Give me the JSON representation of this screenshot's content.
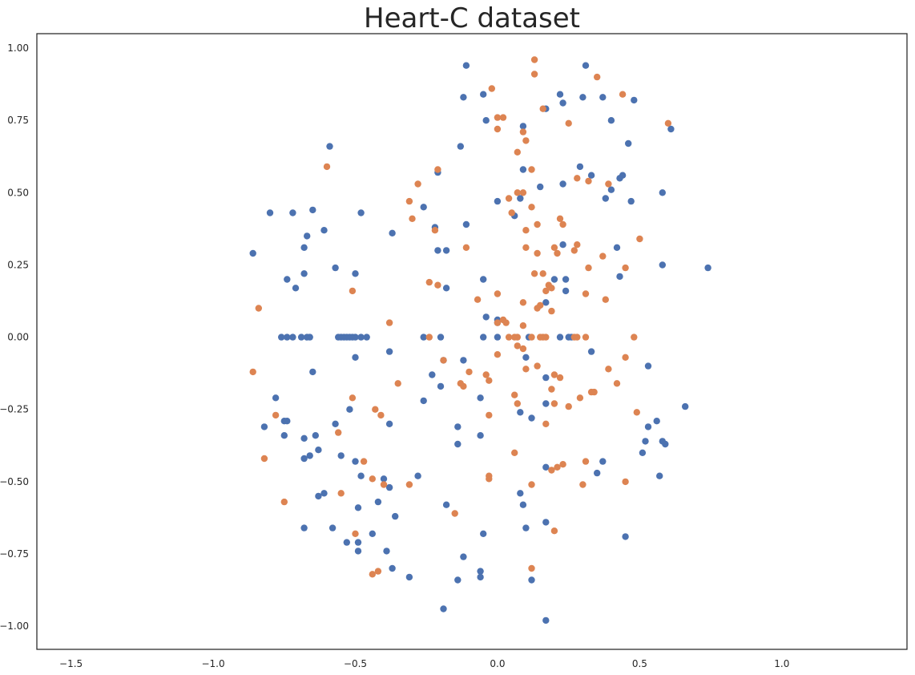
{
  "chart_data": {
    "type": "scatter",
    "title": "Heart-C dataset",
    "xlabel": "",
    "ylabel": "",
    "xlim": [
      -1.62,
      1.44
    ],
    "ylim": [
      -1.08,
      1.05
    ],
    "xticks": [
      -1.5,
      -1.0,
      -0.5,
      0.0,
      0.5,
      1.0
    ],
    "xtick_labels": [
      "−1.5",
      "−1.0",
      "−0.5",
      "0.0",
      "0.5",
      "1.0"
    ],
    "yticks": [
      -1.0,
      -0.75,
      -0.5,
      -0.25,
      0.0,
      0.25,
      0.5,
      0.75,
      1.0
    ],
    "ytick_labels": [
      "−1.00",
      "−0.75",
      "−0.50",
      "−0.25",
      "0.00",
      "0.25",
      "0.50",
      "0.75",
      "1.00"
    ],
    "grid": false,
    "legend": "none",
    "series": [
      {
        "color": "#4c72b0",
        "points": [
          [
            -0.11,
            0.94
          ],
          [
            0.31,
            0.94
          ],
          [
            -0.12,
            0.83
          ],
          [
            -0.05,
            0.84
          ],
          [
            0.22,
            0.84
          ],
          [
            0.3,
            0.83
          ],
          [
            0.37,
            0.83
          ],
          [
            0.48,
            0.82
          ],
          [
            0.17,
            0.79
          ],
          [
            0.23,
            0.81
          ],
          [
            -0.04,
            0.75
          ],
          [
            0.09,
            0.73
          ],
          [
            0.4,
            0.75
          ],
          [
            0.61,
            0.72
          ],
          [
            0.46,
            0.67
          ],
          [
            -0.13,
            0.66
          ],
          [
            -0.59,
            0.66
          ],
          [
            0.29,
            0.59
          ],
          [
            0.09,
            0.58
          ],
          [
            0.33,
            0.56
          ],
          [
            -0.21,
            0.57
          ],
          [
            0.44,
            0.56
          ],
          [
            0.43,
            0.55
          ],
          [
            0.23,
            0.53
          ],
          [
            -0.26,
            0.45
          ],
          [
            0.15,
            0.52
          ],
          [
            0.4,
            0.51
          ],
          [
            0.58,
            0.5
          ],
          [
            0.08,
            0.48
          ],
          [
            0.38,
            0.48
          ],
          [
            0.47,
            0.47
          ],
          [
            0.0,
            0.47
          ],
          [
            -0.48,
            0.43
          ],
          [
            -0.8,
            0.43
          ],
          [
            -0.72,
            0.43
          ],
          [
            -0.65,
            0.44
          ],
          [
            0.06,
            0.42
          ],
          [
            -0.61,
            0.37
          ],
          [
            -0.37,
            0.36
          ],
          [
            -0.67,
            0.35
          ],
          [
            -0.22,
            0.38
          ],
          [
            -0.11,
            0.39
          ],
          [
            -0.21,
            0.3
          ],
          [
            -0.18,
            0.3
          ],
          [
            0.23,
            0.32
          ],
          [
            0.42,
            0.31
          ],
          [
            -0.68,
            0.31
          ],
          [
            -0.86,
            0.29
          ],
          [
            -0.57,
            0.24
          ],
          [
            -0.5,
            0.22
          ],
          [
            0.58,
            0.25
          ],
          [
            0.74,
            0.24
          ],
          [
            -0.68,
            0.22
          ],
          [
            0.43,
            0.21
          ],
          [
            -0.74,
            0.2
          ],
          [
            0.2,
            0.2
          ],
          [
            0.24,
            0.2
          ],
          [
            -0.05,
            0.2
          ],
          [
            -0.18,
            0.17
          ],
          [
            -0.71,
            0.17
          ],
          [
            0.24,
            0.16
          ],
          [
            0.17,
            0.12
          ],
          [
            -0.04,
            0.07
          ],
          [
            0.0,
            0.06
          ],
          [
            0.0,
            0.05
          ],
          [
            -0.76,
            0.0
          ],
          [
            -0.74,
            0.0
          ],
          [
            -0.72,
            0.0
          ],
          [
            -0.69,
            0.0
          ],
          [
            -0.67,
            0.0
          ],
          [
            -0.66,
            0.0
          ],
          [
            -0.56,
            0.0
          ],
          [
            -0.55,
            0.0
          ],
          [
            -0.54,
            0.0
          ],
          [
            -0.53,
            0.0
          ],
          [
            -0.52,
            0.0
          ],
          [
            -0.51,
            0.0
          ],
          [
            -0.5,
            0.0
          ],
          [
            -0.48,
            0.0
          ],
          [
            -0.46,
            0.0
          ],
          [
            -0.26,
            0.0
          ],
          [
            -0.2,
            0.0
          ],
          [
            -0.05,
            0.0
          ],
          [
            0.0,
            0.0
          ],
          [
            0.11,
            0.0
          ],
          [
            0.22,
            0.0
          ],
          [
            0.25,
            0.0
          ],
          [
            0.26,
            0.0
          ],
          [
            -0.38,
            -0.05
          ],
          [
            -0.5,
            -0.07
          ],
          [
            0.1,
            -0.07
          ],
          [
            0.33,
            -0.05
          ],
          [
            -0.19,
            -0.08
          ],
          [
            -0.12,
            -0.08
          ],
          [
            -0.65,
            -0.12
          ],
          [
            0.53,
            -0.1
          ],
          [
            -0.23,
            -0.13
          ],
          [
            -0.2,
            -0.17
          ],
          [
            0.17,
            -0.14
          ],
          [
            -0.78,
            -0.21
          ],
          [
            -0.26,
            -0.22
          ],
          [
            -0.06,
            -0.21
          ],
          [
            0.66,
            -0.24
          ],
          [
            -0.74,
            -0.29
          ],
          [
            -0.75,
            -0.29
          ],
          [
            -0.38,
            -0.3
          ],
          [
            -0.82,
            -0.31
          ],
          [
            -0.52,
            -0.25
          ],
          [
            0.08,
            -0.26
          ],
          [
            0.12,
            -0.28
          ],
          [
            0.17,
            -0.23
          ],
          [
            -0.57,
            -0.3
          ],
          [
            -0.14,
            -0.31
          ],
          [
            0.53,
            -0.31
          ],
          [
            0.56,
            -0.29
          ],
          [
            -0.75,
            -0.34
          ],
          [
            -0.68,
            -0.35
          ],
          [
            -0.64,
            -0.34
          ],
          [
            -0.06,
            -0.34
          ],
          [
            0.52,
            -0.36
          ],
          [
            0.58,
            -0.36
          ],
          [
            0.59,
            -0.37
          ],
          [
            -0.14,
            -0.37
          ],
          [
            -0.63,
            -0.39
          ],
          [
            0.51,
            -0.4
          ],
          [
            -0.66,
            -0.41
          ],
          [
            -0.68,
            -0.42
          ],
          [
            -0.55,
            -0.41
          ],
          [
            -0.5,
            -0.43
          ],
          [
            0.37,
            -0.43
          ],
          [
            0.17,
            -0.45
          ],
          [
            0.35,
            -0.47
          ],
          [
            -0.28,
            -0.48
          ],
          [
            -0.48,
            -0.48
          ],
          [
            -0.4,
            -0.49
          ],
          [
            -0.38,
            -0.52
          ],
          [
            0.57,
            -0.48
          ],
          [
            0.08,
            -0.54
          ],
          [
            -0.61,
            -0.54
          ],
          [
            -0.63,
            -0.55
          ],
          [
            -0.42,
            -0.57
          ],
          [
            -0.18,
            -0.58
          ],
          [
            0.09,
            -0.58
          ],
          [
            -0.49,
            -0.59
          ],
          [
            -0.36,
            -0.62
          ],
          [
            0.17,
            -0.64
          ],
          [
            -0.68,
            -0.66
          ],
          [
            -0.58,
            -0.66
          ],
          [
            0.1,
            -0.66
          ],
          [
            -0.05,
            -0.68
          ],
          [
            0.45,
            -0.69
          ],
          [
            -0.44,
            -0.68
          ],
          [
            -0.53,
            -0.71
          ],
          [
            -0.49,
            -0.71
          ],
          [
            -0.49,
            -0.74
          ],
          [
            -0.39,
            -0.74
          ],
          [
            -0.12,
            -0.76
          ],
          [
            -0.37,
            -0.8
          ],
          [
            -0.31,
            -0.83
          ],
          [
            -0.14,
            -0.84
          ],
          [
            -0.06,
            -0.81
          ],
          [
            -0.06,
            -0.83
          ],
          [
            0.12,
            -0.84
          ],
          [
            -0.19,
            -0.94
          ],
          [
            0.17,
            -0.98
          ]
        ]
      },
      {
        "color": "#dd8452",
        "points": [
          [
            0.13,
            0.96
          ],
          [
            0.13,
            0.91
          ],
          [
            0.35,
            0.9
          ],
          [
            -0.02,
            0.86
          ],
          [
            0.44,
            0.84
          ],
          [
            0.16,
            0.79
          ],
          [
            0.0,
            0.76
          ],
          [
            0.02,
            0.76
          ],
          [
            0.25,
            0.74
          ],
          [
            0.6,
            0.74
          ],
          [
            0.0,
            0.72
          ],
          [
            0.09,
            0.71
          ],
          [
            0.1,
            0.68
          ],
          [
            0.07,
            0.64
          ],
          [
            -0.6,
            0.59
          ],
          [
            0.12,
            0.58
          ],
          [
            -0.21,
            0.58
          ],
          [
            -0.28,
            0.53
          ],
          [
            0.28,
            0.55
          ],
          [
            0.32,
            0.54
          ],
          [
            0.39,
            0.53
          ],
          [
            0.07,
            0.5
          ],
          [
            0.09,
            0.5
          ],
          [
            0.04,
            0.48
          ],
          [
            -0.31,
            0.47
          ],
          [
            0.12,
            0.45
          ],
          [
            0.05,
            0.43
          ],
          [
            0.22,
            0.41
          ],
          [
            0.23,
            0.39
          ],
          [
            -0.3,
            0.41
          ],
          [
            0.14,
            0.39
          ],
          [
            0.1,
            0.37
          ],
          [
            -0.22,
            0.37
          ],
          [
            0.5,
            0.34
          ],
          [
            0.28,
            0.32
          ],
          [
            0.2,
            0.31
          ],
          [
            -0.11,
            0.31
          ],
          [
            0.1,
            0.31
          ],
          [
            0.14,
            0.29
          ],
          [
            0.21,
            0.29
          ],
          [
            0.27,
            0.3
          ],
          [
            0.37,
            0.28
          ],
          [
            0.32,
            0.24
          ],
          [
            0.45,
            0.24
          ],
          [
            0.13,
            0.22
          ],
          [
            0.16,
            0.22
          ],
          [
            -0.24,
            0.19
          ],
          [
            -0.21,
            0.18
          ],
          [
            0.18,
            0.18
          ],
          [
            0.19,
            0.17
          ],
          [
            0.17,
            0.16
          ],
          [
            0.31,
            0.15
          ],
          [
            0.0,
            0.15
          ],
          [
            -0.51,
            0.16
          ],
          [
            0.38,
            0.13
          ],
          [
            -0.07,
            0.13
          ],
          [
            0.09,
            0.12
          ],
          [
            0.15,
            0.11
          ],
          [
            0.14,
            0.1
          ],
          [
            -0.84,
            0.1
          ],
          [
            0.19,
            0.09
          ],
          [
            0.02,
            0.06
          ],
          [
            0.03,
            0.05
          ],
          [
            0.0,
            0.05
          ],
          [
            0.09,
            0.04
          ],
          [
            -0.38,
            0.05
          ],
          [
            -0.24,
            0.0
          ],
          [
            0.04,
            0.0
          ],
          [
            0.06,
            0.0
          ],
          [
            0.07,
            0.0
          ],
          [
            0.12,
            0.0
          ],
          [
            0.15,
            0.0
          ],
          [
            0.16,
            0.0
          ],
          [
            0.17,
            0.0
          ],
          [
            0.27,
            0.0
          ],
          [
            0.28,
            0.0
          ],
          [
            0.31,
            0.0
          ],
          [
            0.48,
            0.0
          ],
          [
            0.07,
            -0.03
          ],
          [
            0.09,
            -0.04
          ],
          [
            0.0,
            -0.06
          ],
          [
            0.14,
            -0.1
          ],
          [
            0.45,
            -0.07
          ],
          [
            -0.19,
            -0.08
          ],
          [
            0.1,
            -0.11
          ],
          [
            0.39,
            -0.11
          ],
          [
            -0.86,
            -0.12
          ],
          [
            -0.1,
            -0.12
          ],
          [
            -0.04,
            -0.13
          ],
          [
            0.2,
            -0.13
          ],
          [
            0.22,
            -0.14
          ],
          [
            -0.03,
            -0.15
          ],
          [
            -0.35,
            -0.16
          ],
          [
            -0.13,
            -0.16
          ],
          [
            -0.12,
            -0.17
          ],
          [
            0.42,
            -0.16
          ],
          [
            0.19,
            -0.18
          ],
          [
            0.33,
            -0.19
          ],
          [
            0.34,
            -0.19
          ],
          [
            0.06,
            -0.2
          ],
          [
            -0.51,
            -0.21
          ],
          [
            0.29,
            -0.21
          ],
          [
            0.07,
            -0.23
          ],
          [
            0.2,
            -0.23
          ],
          [
            0.25,
            -0.24
          ],
          [
            -0.43,
            -0.25
          ],
          [
            -0.78,
            -0.27
          ],
          [
            0.49,
            -0.26
          ],
          [
            -0.03,
            -0.27
          ],
          [
            -0.41,
            -0.27
          ],
          [
            0.17,
            -0.3
          ],
          [
            -0.56,
            -0.33
          ],
          [
            0.06,
            -0.4
          ],
          [
            -0.47,
            -0.43
          ],
          [
            0.31,
            -0.43
          ],
          [
            0.23,
            -0.44
          ],
          [
            0.21,
            -0.45
          ],
          [
            0.19,
            -0.46
          ],
          [
            -0.82,
            -0.42
          ],
          [
            -0.03,
            -0.48
          ],
          [
            -0.03,
            -0.49
          ],
          [
            -0.44,
            -0.49
          ],
          [
            -0.4,
            -0.51
          ],
          [
            0.12,
            -0.51
          ],
          [
            0.3,
            -0.51
          ],
          [
            -0.31,
            -0.51
          ],
          [
            0.45,
            -0.5
          ],
          [
            -0.55,
            -0.54
          ],
          [
            -0.75,
            -0.57
          ],
          [
            -0.15,
            -0.61
          ],
          [
            0.2,
            -0.67
          ],
          [
            -0.5,
            -0.68
          ],
          [
            0.12,
            -0.8
          ],
          [
            -0.42,
            -0.81
          ],
          [
            -0.44,
            -0.82
          ]
        ]
      }
    ]
  }
}
